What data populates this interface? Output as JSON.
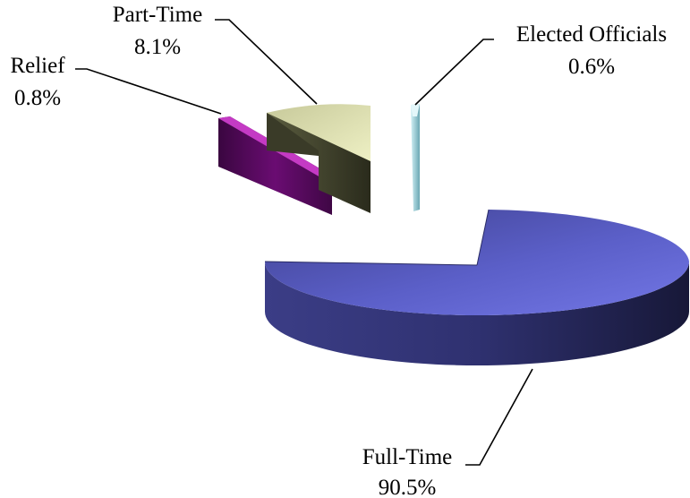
{
  "chart_data": {
    "type": "pie",
    "style": "3d-exploded",
    "title": "",
    "slices": [
      {
        "name": "Full-Time",
        "value": 90.5,
        "label": "90.5%",
        "color": "#6b6fdc",
        "side_color": "#2b2d6a"
      },
      {
        "name": "Elected Officials",
        "value": 0.6,
        "label": "0.6%",
        "color": "#b8e4ec",
        "side_color": "#5f9aa6"
      },
      {
        "name": "Part-Time",
        "value": 8.1,
        "label": "8.1%",
        "color": "#e9ecb8",
        "side_color": "#4a4c34"
      },
      {
        "name": "Relief",
        "value": 0.8,
        "label": "0.8%",
        "color": "#b02bb0",
        "side_color": "#4a0a50"
      }
    ]
  }
}
